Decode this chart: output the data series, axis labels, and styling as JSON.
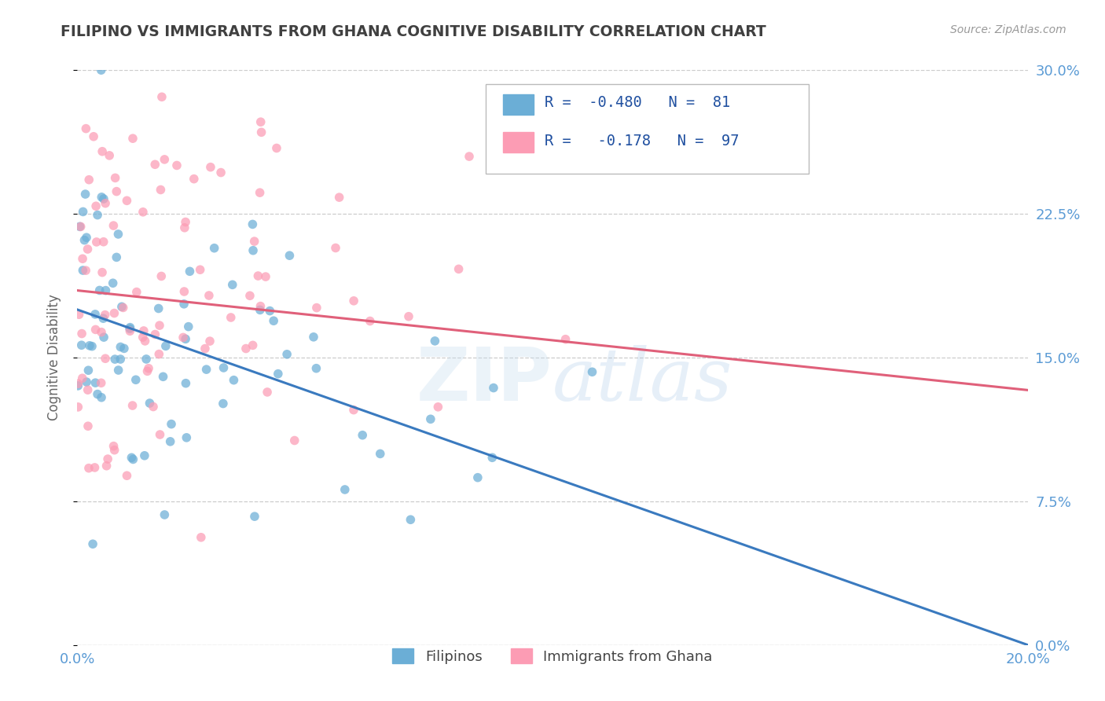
{
  "title": "FILIPINO VS IMMIGRANTS FROM GHANA COGNITIVE DISABILITY CORRELATION CHART",
  "source": "Source: ZipAtlas.com",
  "ylabel": "Cognitive Disability",
  "x_min": 0.0,
  "x_max": 0.2,
  "y_min": 0.0,
  "y_max": 0.3,
  "x_ticks": [
    0.0,
    0.2
  ],
  "x_tick_labels": [
    "0.0%",
    "20.0%"
  ],
  "y_ticks_right": [
    0.0,
    0.075,
    0.15,
    0.225,
    0.3
  ],
  "y_tick_labels_right": [
    "0.0%",
    "7.5%",
    "15.0%",
    "22.5%",
    "30.0%"
  ],
  "filipino_R": -0.48,
  "filipino_N": 81,
  "ghana_R": -0.178,
  "ghana_N": 97,
  "filipino_color": "#6baed6",
  "ghana_color": "#fc9cb4",
  "filipino_line_color": "#3a7abf",
  "ghana_line_color": "#e0607a",
  "watermark": "ZIPatlas",
  "background_color": "#ffffff",
  "grid_color": "#cccccc",
  "title_color": "#404040",
  "axis_label_color": "#5b9bd5",
  "legend_text_color": "#2050a0",
  "filipino_line_x0": 0.0,
  "filipino_line_y0": 0.175,
  "filipino_line_x1": 0.2,
  "filipino_line_y1": 0.0,
  "ghana_line_x0": 0.0,
  "ghana_line_y0": 0.185,
  "ghana_line_x1": 0.2,
  "ghana_line_y1": 0.133,
  "seed": 7
}
